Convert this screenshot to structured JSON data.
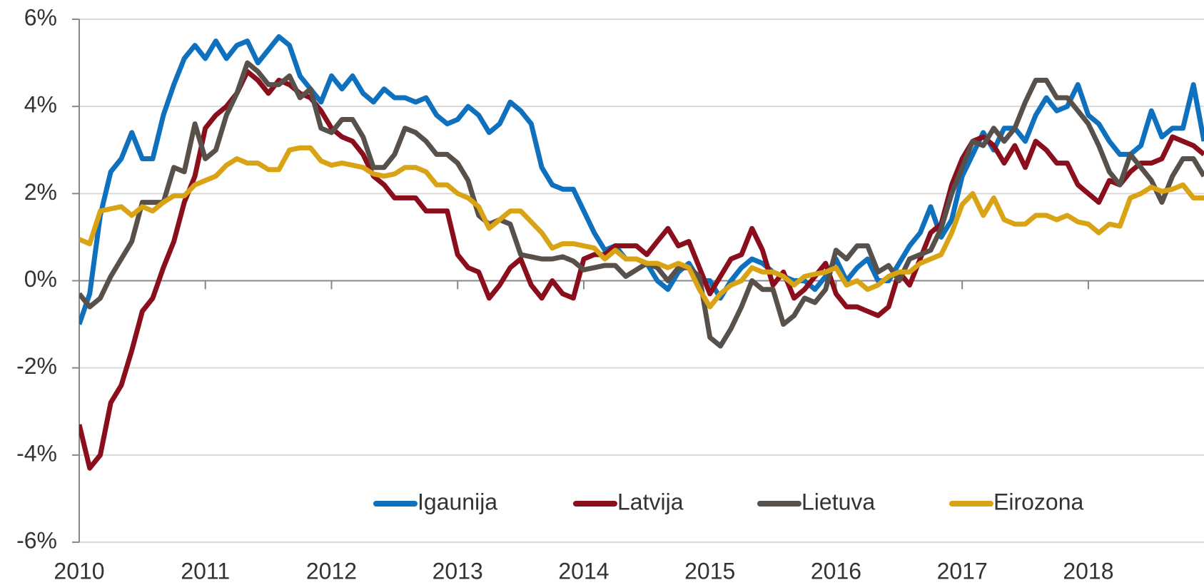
{
  "chart_data": {
    "type": "line",
    "x": [
      2010,
      2010.083,
      2010.167,
      2010.25,
      2010.333,
      2010.417,
      2010.5,
      2010.583,
      2010.667,
      2010.75,
      2010.833,
      2010.917,
      2011,
      2011.083,
      2011.167,
      2011.25,
      2011.333,
      2011.417,
      2011.5,
      2011.583,
      2011.667,
      2011.75,
      2011.833,
      2011.917,
      2012,
      2012.083,
      2012.167,
      2012.25,
      2012.333,
      2012.417,
      2012.5,
      2012.583,
      2012.667,
      2012.75,
      2012.833,
      2012.917,
      2013,
      2013.083,
      2013.167,
      2013.25,
      2013.333,
      2013.417,
      2013.5,
      2013.583,
      2013.667,
      2013.75,
      2013.833,
      2013.917,
      2014,
      2014.083,
      2014.167,
      2014.25,
      2014.333,
      2014.417,
      2014.5,
      2014.583,
      2014.667,
      2014.75,
      2014.833,
      2014.917,
      2015,
      2015.083,
      2015.167,
      2015.25,
      2015.333,
      2015.417,
      2015.5,
      2015.583,
      2015.667,
      2015.75,
      2015.833,
      2015.917,
      2016,
      2016.083,
      2016.167,
      2016.25,
      2016.333,
      2016.417,
      2016.5,
      2016.583,
      2016.667,
      2016.75,
      2016.833,
      2016.917,
      2017,
      2017.083,
      2017.167,
      2017.25,
      2017.333,
      2017.417,
      2017.5,
      2017.583,
      2017.667,
      2017.75,
      2017.833,
      2017.917,
      2018,
      2018.083,
      2018.167,
      2018.25,
      2018.333,
      2018.417,
      2018.5,
      2018.583,
      2018.667,
      2018.75,
      2018.833,
      2018.917
    ],
    "series": [
      {
        "name": "Igaunija",
        "color": "#0f71bd",
        "values": [
          -1.0,
          -0.3,
          1.5,
          2.5,
          2.8,
          3.4,
          2.8,
          2.8,
          3.8,
          4.5,
          5.1,
          5.4,
          5.1,
          5.5,
          5.1,
          5.4,
          5.5,
          5.0,
          5.3,
          5.6,
          5.4,
          4.7,
          4.4,
          4.1,
          4.7,
          4.4,
          4.7,
          4.3,
          4.1,
          4.4,
          4.2,
          4.2,
          4.1,
          4.2,
          3.8,
          3.6,
          3.7,
          4.0,
          3.8,
          3.4,
          3.6,
          4.1,
          3.9,
          3.6,
          2.6,
          2.2,
          2.1,
          2.1,
          1.6,
          1.1,
          0.7,
          0.8,
          0.5,
          0.5,
          0.4,
          0.0,
          -0.2,
          0.2,
          0.4,
          0.0,
          0.0,
          -0.4,
          0.0,
          0.3,
          0.5,
          0.4,
          0.2,
          0.1,
          0.0,
          0.0,
          -0.2,
          0.1,
          0.5,
          0.0,
          0.3,
          0.5,
          0.0,
          0.0,
          0.4,
          0.8,
          1.1,
          1.7,
          1.0,
          1.4,
          2.4,
          2.9,
          3.4,
          3.0,
          3.5,
          3.5,
          3.2,
          3.8,
          4.2,
          3.9,
          4.0,
          4.5,
          3.8,
          3.6,
          3.2,
          2.9,
          2.9,
          3.1,
          3.9,
          3.3,
          3.5,
          3.5,
          4.5,
          3.2
        ]
      },
      {
        "name": "Latvija",
        "color": "#8b0e1c",
        "values": [
          -3.3,
          -4.3,
          -4.0,
          -2.8,
          -2.4,
          -1.6,
          -0.7,
          -0.4,
          0.3,
          0.9,
          1.8,
          2.4,
          3.5,
          3.8,
          4.0,
          4.3,
          4.8,
          4.6,
          4.3,
          4.6,
          4.5,
          4.3,
          4.2,
          3.9,
          3.5,
          3.3,
          3.2,
          2.9,
          2.4,
          2.2,
          1.9,
          1.9,
          1.9,
          1.6,
          1.6,
          1.6,
          0.6,
          0.3,
          0.2,
          -0.4,
          -0.1,
          0.3,
          0.5,
          -0.1,
          -0.4,
          0.0,
          -0.3,
          -0.4,
          0.5,
          0.6,
          0.6,
          0.8,
          0.8,
          0.8,
          0.6,
          0.9,
          1.2,
          0.8,
          0.9,
          0.3,
          -0.3,
          0.1,
          0.5,
          0.6,
          1.2,
          0.7,
          -0.1,
          0.2,
          -0.4,
          -0.2,
          0.1,
          0.4,
          -0.3,
          -0.6,
          -0.6,
          -0.7,
          -0.8,
          -0.6,
          0.2,
          -0.1,
          0.5,
          1.1,
          1.3,
          2.2,
          2.8,
          3.2,
          3.3,
          3.1,
          2.7,
          3.1,
          2.6,
          3.2,
          3.0,
          2.7,
          2.7,
          2.2,
          2.0,
          1.8,
          2.3,
          2.2,
          2.5,
          2.7,
          2.7,
          2.8,
          3.3,
          3.2,
          3.1,
          2.9
        ]
      },
      {
        "name": "Lietuva",
        "color": "#58504a",
        "values": [
          -0.3,
          -0.6,
          -0.4,
          0.1,
          0.5,
          0.9,
          1.8,
          1.8,
          1.8,
          2.6,
          2.5,
          3.6,
          2.8,
          3.0,
          3.8,
          4.3,
          5.0,
          4.8,
          4.5,
          4.5,
          4.7,
          4.2,
          4.4,
          3.5,
          3.4,
          3.7,
          3.7,
          3.3,
          2.6,
          2.6,
          2.9,
          3.5,
          3.4,
          3.2,
          2.9,
          2.9,
          2.7,
          2.3,
          1.5,
          1.3,
          1.4,
          1.3,
          0.6,
          0.55,
          0.5,
          0.5,
          0.55,
          0.45,
          0.25,
          0.3,
          0.35,
          0.35,
          0.1,
          0.25,
          0.4,
          0.3,
          0.0,
          0.3,
          0.3,
          0.1,
          -1.3,
          -1.5,
          -1.1,
          -0.6,
          0.0,
          -0.2,
          -0.2,
          -1.0,
          -0.8,
          -0.4,
          -0.5,
          -0.2,
          0.7,
          0.5,
          0.8,
          0.8,
          0.2,
          0.35,
          0.0,
          0.5,
          0.6,
          0.7,
          1.2,
          2.0,
          2.6,
          3.2,
          3.1,
          3.5,
          3.2,
          3.5,
          4.1,
          4.6,
          4.6,
          4.2,
          4.2,
          3.9,
          3.6,
          3.1,
          2.5,
          2.2,
          2.9,
          2.6,
          2.3,
          1.8,
          2.4,
          2.8,
          2.8,
          2.4
        ]
      },
      {
        "name": "Eirozona",
        "color": "#d9a316",
        "values": [
          0.95,
          0.85,
          1.6,
          1.65,
          1.7,
          1.5,
          1.7,
          1.6,
          1.8,
          1.95,
          1.95,
          2.2,
          2.3,
          2.4,
          2.65,
          2.8,
          2.7,
          2.7,
          2.55,
          2.55,
          3.0,
          3.05,
          3.05,
          2.75,
          2.65,
          2.7,
          2.65,
          2.6,
          2.45,
          2.4,
          2.45,
          2.6,
          2.6,
          2.5,
          2.2,
          2.2,
          2.0,
          1.9,
          1.7,
          1.2,
          1.4,
          1.6,
          1.6,
          1.35,
          1.1,
          0.75,
          0.85,
          0.85,
          0.8,
          0.75,
          0.5,
          0.7,
          0.5,
          0.5,
          0.4,
          0.4,
          0.3,
          0.4,
          0.3,
          -0.2,
          -0.6,
          -0.3,
          -0.1,
          0.0,
          0.3,
          0.2,
          0.2,
          0.1,
          -0.1,
          0.1,
          0.15,
          0.2,
          0.3,
          -0.1,
          0.0,
          -0.2,
          -0.1,
          0.1,
          0.2,
          0.2,
          0.4,
          0.5,
          0.6,
          1.1,
          1.75,
          2.0,
          1.5,
          1.9,
          1.4,
          1.3,
          1.3,
          1.5,
          1.5,
          1.4,
          1.5,
          1.35,
          1.3,
          1.1,
          1.3,
          1.25,
          1.9,
          2.0,
          2.15,
          2.05,
          2.1,
          2.2,
          1.9,
          1.9
        ]
      }
    ],
    "xlim": [
      2010,
      2018.917
    ],
    "xticks": [
      2010,
      2011,
      2012,
      2013,
      2014,
      2015,
      2016,
      2017,
      2018
    ],
    "ylim": [
      -6,
      6
    ],
    "yticks": [
      {
        "value": -6,
        "label": "-6%"
      },
      {
        "value": -4,
        "label": "-4%"
      },
      {
        "value": -2,
        "label": "-2%"
      },
      {
        "value": 0,
        "label": "0%"
      },
      {
        "value": 2,
        "label": "2%"
      },
      {
        "value": 4,
        "label": "4%"
      },
      {
        "value": 6,
        "label": "6%"
      }
    ],
    "grid": true,
    "legend": "bottom"
  }
}
